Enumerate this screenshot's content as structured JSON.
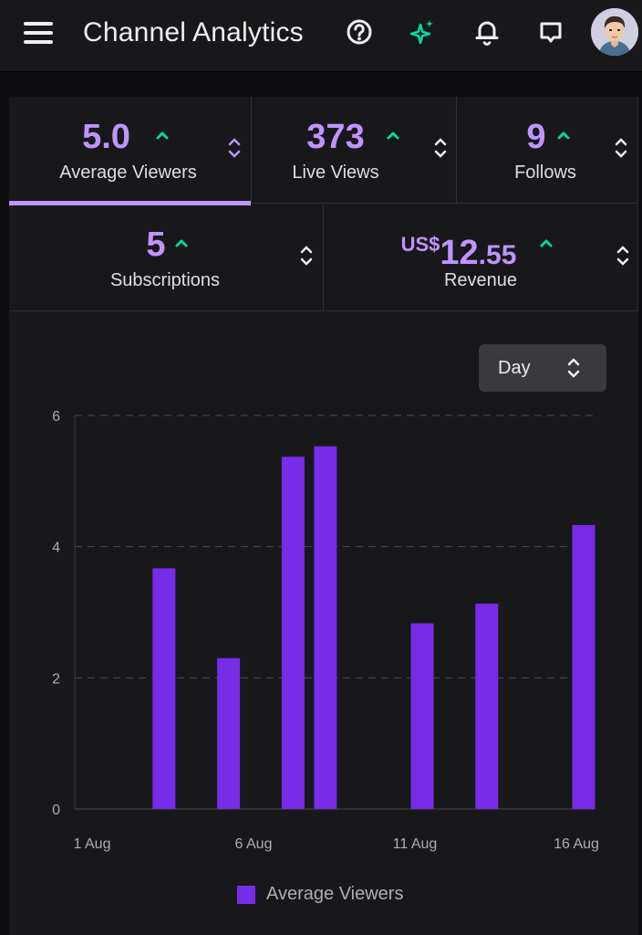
{
  "app": {
    "title": "Channel Analytics",
    "icons": [
      "menu-icon",
      "help-icon",
      "sparkle-icon",
      "bell-icon",
      "whispers-icon",
      "avatar"
    ]
  },
  "metrics": {
    "average_viewers": {
      "value": "5.0",
      "label": "Average Viewers",
      "trend": "up"
    },
    "live_views": {
      "value": "373",
      "label": "Live Views",
      "trend": "up"
    },
    "follows": {
      "value": "9",
      "label": "Follows",
      "trend": "up"
    },
    "subscriptions": {
      "value": "5",
      "label": "Subscriptions",
      "trend": "up"
    },
    "revenue": {
      "currency": "US$",
      "whole": "12",
      "fraction": ".55",
      "label": "Revenue",
      "trend": "up"
    }
  },
  "controls": {
    "interval": "Day"
  },
  "colors": {
    "accent": "#bf94ff",
    "bar": "#772ce8",
    "trend_up": "#00f593"
  },
  "chart_data": {
    "type": "bar",
    "title": "",
    "xlabel": "",
    "ylabel": "",
    "x_ticks": [
      "1 Aug",
      "6 Aug",
      "11 Aug",
      "16 Aug"
    ],
    "y_ticks": [
      "0",
      "2",
      "4",
      "6"
    ],
    "ylim": [
      0,
      6
    ],
    "categories": [
      "1 Aug",
      "2 Aug",
      "3 Aug",
      "4 Aug",
      "5 Aug",
      "6 Aug",
      "7 Aug",
      "8 Aug",
      "9 Aug",
      "10 Aug",
      "11 Aug",
      "12 Aug",
      "13 Aug",
      "14 Aug",
      "15 Aug",
      "16 Aug"
    ],
    "series": [
      {
        "name": "Average Viewers",
        "values": [
          0,
          0,
          3.67,
          0,
          2.3,
          0,
          5.37,
          5.53,
          0,
          0,
          2.83,
          0,
          3.13,
          0,
          0,
          4.33
        ]
      }
    ],
    "legend": "bottom-center",
    "grid": true
  }
}
